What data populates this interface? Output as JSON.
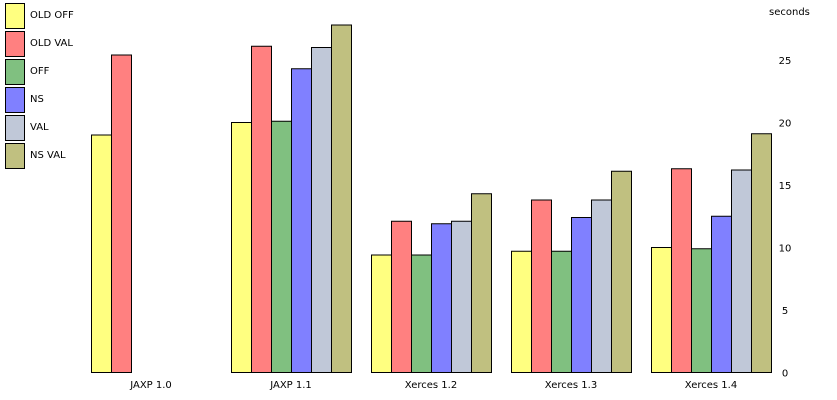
{
  "chart_data": {
    "type": "bar",
    "categories": [
      "JAXP 1.0",
      "JAXP 1.1",
      "Xerces 1.2",
      "Xerces 1.3",
      "Xerces 1.4"
    ],
    "series": [
      {
        "name": "OLD OFF",
        "color": "#ffff80",
        "values": [
          19.0,
          20.0,
          9.4,
          9.7,
          10.0
        ]
      },
      {
        "name": "OLD VAL",
        "color": "#ff8080",
        "values": [
          25.4,
          26.1,
          12.1,
          13.8,
          16.3
        ]
      },
      {
        "name": "OFF",
        "color": "#80c080",
        "values": [
          null,
          20.1,
          9.4,
          9.7,
          9.9
        ]
      },
      {
        "name": "NS",
        "color": "#8080ff",
        "values": [
          null,
          24.3,
          11.9,
          12.4,
          12.5
        ]
      },
      {
        "name": "VAL",
        "color": "#c0c8d8",
        "values": [
          null,
          26.0,
          12.1,
          13.8,
          16.2
        ]
      },
      {
        "name": "NS VAL",
        "color": "#c0c080",
        "values": [
          null,
          27.8,
          14.3,
          16.1,
          19.1
        ]
      }
    ],
    "ylabel": "seconds",
    "ylim": [
      0,
      29.5
    ],
    "yticks": [
      0,
      5,
      10,
      15,
      20,
      25
    ],
    "grid": false,
    "legend_position": "top-left",
    "y_axis_side": "right"
  }
}
